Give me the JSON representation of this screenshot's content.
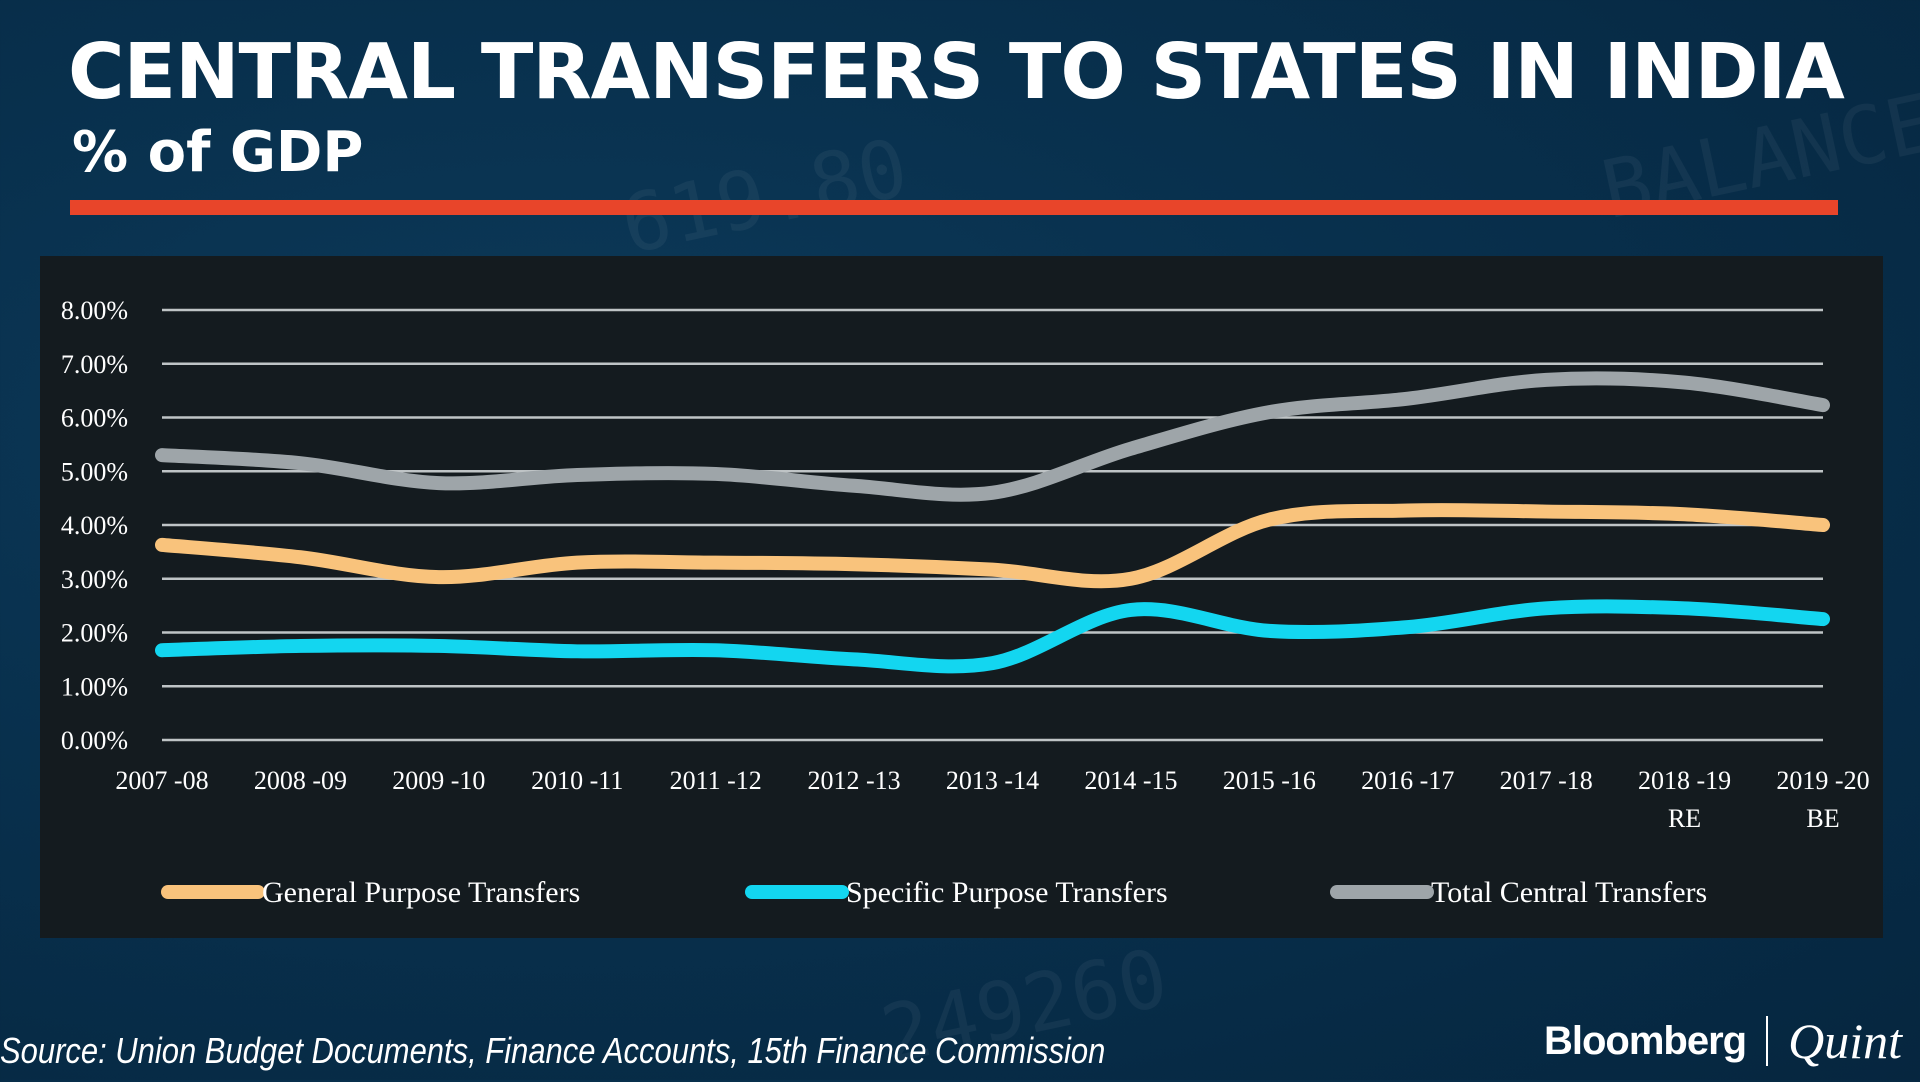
{
  "header": {
    "title": "CENTRAL TRANSFERS TO STATES IN INDIA",
    "subtitle": "% of GDP"
  },
  "footer": {
    "source": "Source: Union Budget Documents, Finance Accounts, 15th Finance Commission",
    "logo_primary": "Bloomberg",
    "logo_secondary": "Quint"
  },
  "colors": {
    "accent": "#e8452a",
    "general": "#f9c37c",
    "specific": "#13d6f0",
    "total": "#9ea5a9",
    "gridline": "#bfc4c6",
    "panel": "#141b1f"
  },
  "chart_data": {
    "type": "line",
    "title": "CENTRAL TRANSFERS TO STATES IN INDIA",
    "subtitle": "% of GDP",
    "categories": [
      [
        "2007 -08"
      ],
      [
        "2008 -09"
      ],
      [
        "2009 -10"
      ],
      [
        "2010 -11"
      ],
      [
        "2011 -12"
      ],
      [
        "2012 -13"
      ],
      [
        "2013 -14"
      ],
      [
        "2014 -15"
      ],
      [
        "2015 -16"
      ],
      [
        "2016 -17"
      ],
      [
        "2017 -18"
      ],
      [
        "2018 -19",
        "RE"
      ],
      [
        "2019 -20",
        "BE"
      ]
    ],
    "ylim": [
      0,
      8
    ],
    "yticks": [
      "0.00%",
      "1.00%",
      "2.00%",
      "3.00%",
      "4.00%",
      "5.00%",
      "6.00%",
      "7.00%",
      "8.00%"
    ],
    "grid": true,
    "legend_position": "bottom",
    "series": [
      {
        "name": "General Purpose Transfers",
        "color": "#f9c37c",
        "values": [
          3.63,
          3.4,
          3.03,
          3.3,
          3.3,
          3.27,
          3.17,
          3.0,
          4.1,
          4.27,
          4.25,
          4.2,
          4.0
        ]
      },
      {
        "name": "Specific Purpose Transfers",
        "color": "#13d6f0",
        "values": [
          1.67,
          1.75,
          1.75,
          1.65,
          1.67,
          1.5,
          1.43,
          2.42,
          2.03,
          2.1,
          2.45,
          2.45,
          2.25
        ]
      },
      {
        "name": "Total Central Transfers",
        "color": "#9ea5a9",
        "values": [
          5.3,
          5.15,
          4.78,
          4.93,
          4.95,
          4.73,
          4.6,
          5.42,
          6.1,
          6.35,
          6.7,
          6.65,
          6.23
        ]
      }
    ]
  }
}
